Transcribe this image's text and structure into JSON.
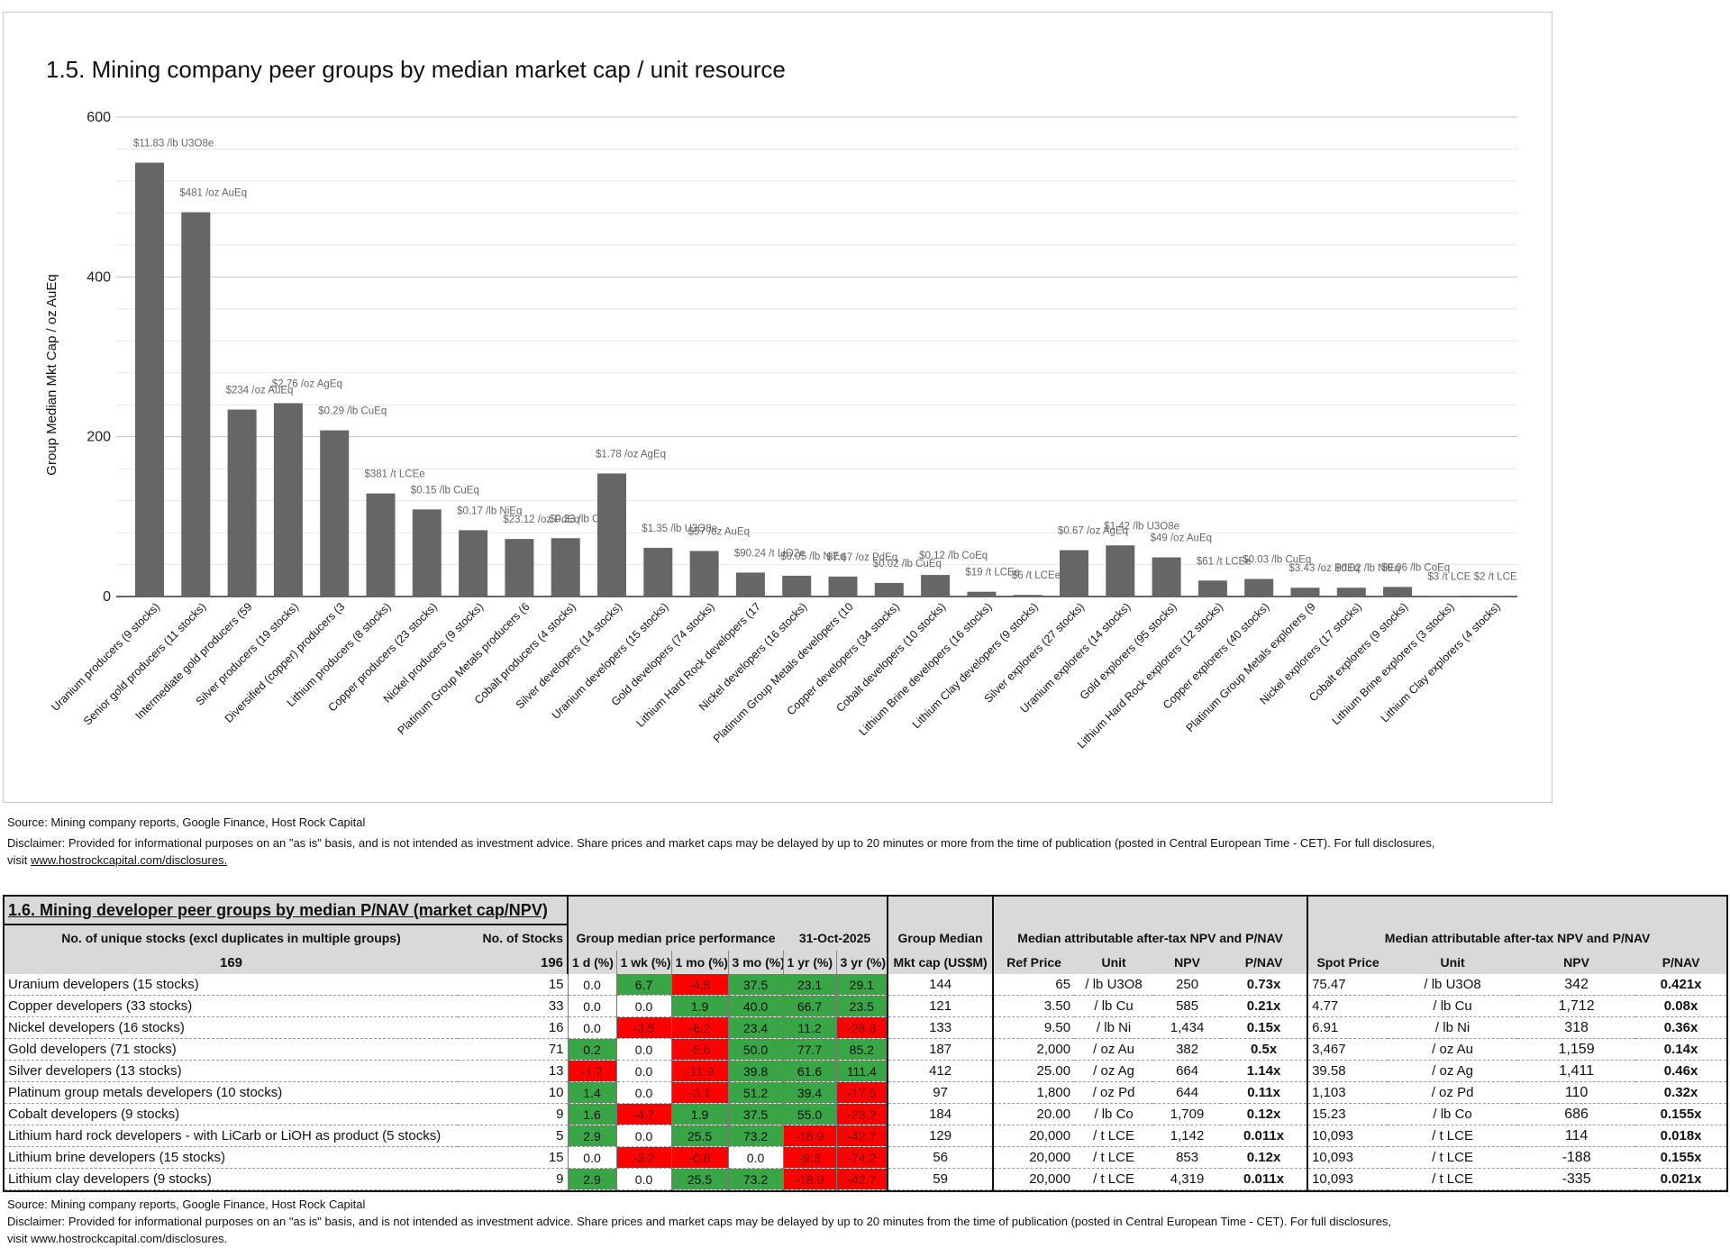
{
  "chart_data": {
    "type": "bar",
    "title": "1.5. Mining company peer groups by median market cap / unit resource",
    "ylabel": "Group Median Mkt Cap / oz AuEq",
    "xlabel": "",
    "ylim": [
      0,
      600
    ],
    "yticks": [
      0,
      200,
      400,
      600
    ],
    "categories": [
      "Uranium producers (9 stocks)",
      "Senior gold producers (11 stocks)",
      "Intermediate gold producers (59",
      "Silver producers (19 stocks)",
      "Diversified (copper) producers (3",
      "Lithium producers (8 stocks)",
      "Copper producers (23 stocks)",
      "Nickel producers (9 stocks)",
      "Platinum Group Metals producers (6",
      "Cobalt producers (4 stocks)",
      "Silver developers (14 stocks)",
      "Uranium developers (15 stocks)",
      "Gold developers (74 stocks)",
      "Lithium Hard Rock developers (17",
      "Nickel developers (16 stocks)",
      "Platinum Group Metals developers (10",
      "Copper developers (34 stocks)",
      "Cobalt developers (10 stocks)",
      "Lithium Brine developers (16 stocks)",
      "Lithium Clay developers (9 stocks)",
      "Silver explorers (27 stocks)",
      "Uranium explorers (14 stocks)",
      "Gold explorers (95 stocks)",
      "Lithium Hard Rock explorers (12 stocks)",
      "Copper explorers (40 stocks)",
      "Platinum Group Metals explorers (9",
      "Nickel explorers (17 stocks)",
      "Cobalt explorers (9 stocks)",
      "Lithium Brine explorers (3 stocks)",
      "Lithium Clay explorers (4 stocks)"
    ],
    "values": [
      543,
      481,
      234,
      242,
      208,
      129,
      109,
      83,
      72,
      73,
      154,
      61,
      57,
      30,
      26,
      25,
      17,
      27,
      6,
      2,
      58,
      64,
      49,
      20,
      22,
      11,
      11,
      12,
      0.5,
      0.3
    ],
    "data_labels": [
      "$11.83 /lb U3O8e",
      "$481 /oz AuEq",
      "$234 /oz AuEq",
      "$2.76 /oz AgEq",
      "$0.29 /lb CuEq",
      "$381 /t LCEe",
      "$0.15 /lb CuEq",
      "$0.17 /lb NiEq",
      "$23.12 /oz PdEq",
      "$0.33 /lb CoEq",
      "$1.78 /oz AgEq",
      "$1.35 /lb U3O8e",
      "$57 /oz AuEq",
      "$90.24 /t LiO2e",
      "$0.05 /lb NiEq",
      "$7.67 /oz PdEq",
      "$0.02 /lb CuEq",
      "$0.12 /lb CoEq",
      "$19 /t LCEe",
      "$6 /t LCEe",
      "$0.67 /oz AgEq",
      "$1.42 /lb U3O8e",
      "$49 /oz AuEq",
      "$61 /t LCEe",
      "$0.03 /lb CuEq",
      "$3.43 /oz PdEq",
      "$0.02 /lb NiEq",
      "$0.06 /lb CoEq",
      "$3 /t LCE",
      "$2 /t LCE"
    ],
    "bar_color": "#666666"
  },
  "chart_notes": {
    "source": "Source: Mining company reports, Google Finance, Host Rock Capital",
    "disclaimer": "Disclaimer: Provided for informational purposes on an \"as is\" basis, and is not intended as investment advice. Share prices and market caps may be delayed by up to 20 minutes or more from the time of publication (posted in Central European Time - CET). For full disclosures,",
    "visit_prefix": "visit ",
    "link": "www.hostrockcapital.com/disclosures."
  },
  "table": {
    "title": "1.6. Mining developer peer groups by median P/NAV (market cap/NPV)",
    "unique_label": "No. of unique stocks (excl duplicates in multiple groups)",
    "unique_count": "169",
    "stocks_label": "No. of Stocks",
    "stocks_total": "196",
    "perf_label": "Group median price performance",
    "date": "31-Oct-2025",
    "group_median_label": "Group Median",
    "mkt_cap_label": "Mkt cap (US$M)",
    "npv_group_label": "Median attributable after-tax NPV and P/NAV",
    "npv_group_label_2": "Median attributable after-tax NPV and P/NAV",
    "perf_cols": [
      "1 d (%)",
      "1 wk (%)",
      "1 mo (%)",
      "3 mo (%)",
      "1 yr (%)",
      "3 yr (%)"
    ],
    "ref_cols": [
      "Ref Price",
      "Unit",
      "NPV",
      "P/NAV"
    ],
    "spot_cols": [
      "Spot Price",
      "Unit",
      "NPV",
      "P/NAV"
    ],
    "rows": [
      {
        "name": "Uranium developers (15 stocks)",
        "n": "15",
        "perf": [
          "0.0",
          "6.7",
          "-4.8",
          "37.5",
          "23.1",
          "29.1"
        ],
        "mcap": "144",
        "ref": "65",
        "unit": "/ lb U3O8",
        "npv": "250",
        "pnav": "0.73x",
        "spot": "75.47",
        "sunit": "/ lb U3O8",
        "snpv": "342",
        "spnav": "0.421x"
      },
      {
        "name": "Copper developers (33 stocks)",
        "n": "33",
        "perf": [
          "0.0",
          "0.0",
          "1.9",
          "40.0",
          "66.7",
          "23.5"
        ],
        "mcap": "121",
        "ref": "3.50",
        "unit": "/ lb Cu",
        "npv": "585",
        "pnav": "0.21x",
        "spot": "4.77",
        "sunit": "/ lb Cu",
        "snpv": "1,712",
        "spnav": "0.08x"
      },
      {
        "name": "Nickel developers (16 stocks)",
        "n": "16",
        "perf": [
          "0.0",
          "-3.5",
          "-6.2",
          "23.4",
          "11.2",
          "-28.3"
        ],
        "mcap": "133",
        "ref": "9.50",
        "unit": "/ lb Ni",
        "npv": "1,434",
        "pnav": "0.15x",
        "spot": "6.91",
        "sunit": "/ lb Ni",
        "snpv": "318",
        "spnav": "0.36x"
      },
      {
        "name": "Gold developers (71 stocks)",
        "n": "71",
        "perf": [
          "0.2",
          "0.0",
          "-5.6",
          "50.0",
          "77.7",
          "85.2"
        ],
        "mcap": "187",
        "ref": "2,000",
        "unit": "/ oz Au",
        "npv": "382",
        "pnav": "0.5x",
        "spot": "3,467",
        "sunit": "/ oz Au",
        "snpv": "1,159",
        "spnav": "0.14x"
      },
      {
        "name": "Silver developers (13 stocks)",
        "n": "13",
        "perf": [
          "-1.2",
          "0.0",
          "-11.9",
          "39.8",
          "61.6",
          "111.4"
        ],
        "mcap": "412",
        "ref": "25.00",
        "unit": "/ oz Ag",
        "npv": "664",
        "pnav": "1.14x",
        "spot": "39.58",
        "sunit": "/ oz Ag",
        "snpv": "1,411",
        "spnav": "0.46x"
      },
      {
        "name": "Platinum group metals developers (10 stocks)",
        "n": "10",
        "perf": [
          "1.4",
          "0.0",
          "-3.1",
          "51.2",
          "39.4",
          "-17.5"
        ],
        "mcap": "97",
        "ref": "1,800",
        "unit": "/ oz Pd",
        "npv": "644",
        "pnav": "0.11x",
        "spot": "1,103",
        "sunit": "/ oz Pd",
        "snpv": "110",
        "spnav": "0.32x"
      },
      {
        "name": "Cobalt developers (9 stocks)",
        "n": "9",
        "perf": [
          "1.6",
          "-4.7",
          "1.9",
          "37.5",
          "55.0",
          "-23.2"
        ],
        "mcap": "184",
        "ref": "20.00",
        "unit": "/ lb Co",
        "npv": "1,709",
        "pnav": "0.12x",
        "spot": "15.23",
        "sunit": "/ lb Co",
        "snpv": "686",
        "spnav": "0.155x"
      },
      {
        "name": "Lithium hard rock developers - with LiCarb or LiOH as product (5 stocks)",
        "n": "5",
        "perf": [
          "2.9",
          "0.0",
          "25.5",
          "73.2",
          "-18.9",
          "-42.7"
        ],
        "mcap": "129",
        "ref": "20,000",
        "unit": "/ t LCE",
        "npv": "1,142",
        "pnav": "0.011x",
        "spot": "10,093",
        "sunit": "/ t LCE",
        "snpv": "114",
        "spnav": "0.018x"
      },
      {
        "name": "Lithium brine developers (15 stocks)",
        "n": "15",
        "perf": [
          "0.0",
          "-3.2",
          "-0.8",
          "0.0",
          "-9.3",
          "-74.2"
        ],
        "mcap": "56",
        "ref": "20,000",
        "unit": "/ t LCE",
        "npv": "853",
        "pnav": "0.12x",
        "spot": "10,093",
        "sunit": "/ t LCE",
        "snpv": "-188",
        "spnav": "0.155x"
      },
      {
        "name": "Lithium clay developers (9 stocks)",
        "n": "9",
        "perf": [
          "2.9",
          "0.0",
          "25.5",
          "73.2",
          "-18.9",
          "-42.7"
        ],
        "mcap": "59",
        "ref": "20,000",
        "unit": "/ t LCE",
        "npv": "4,319",
        "pnav": "0.011x",
        "spot": "10,093",
        "sunit": "/ t LCE",
        "snpv": "-335",
        "spnav": "0.021x"
      }
    ]
  },
  "table_notes": {
    "source": "Source: Mining company reports, Google Finance, Host Rock Capital",
    "disclaimer": "Disclaimer: Provided for informational purposes on an \"as is\" basis, and is not intended as investment advice. Share prices and market caps may be delayed by up to 20 minutes from the time of publication (posted in Central European Time - CET). For full disclosures,",
    "visit": "visit www.hostrockcapital.com/disclosures."
  }
}
